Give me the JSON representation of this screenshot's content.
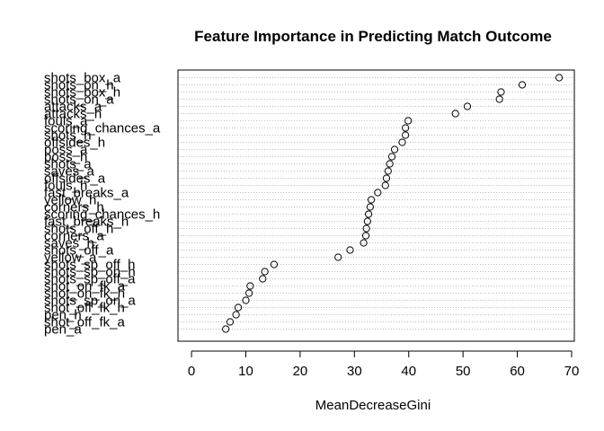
{
  "chart_data": {
    "type": "scatter",
    "title": "Feature Importance in Predicting Match Outcome",
    "xlabel": "MeanDecreaseGini",
    "ylabel": "",
    "xlim": [
      -2.5,
      70.5
    ],
    "xticks": [
      0,
      10,
      20,
      30,
      40,
      50,
      60,
      70
    ],
    "grid": "dotted horizontal guides",
    "points": [
      {
        "label": "shots_box_a",
        "value": 67.7
      },
      {
        "label": "shots_on_h",
        "value": 60.9
      },
      {
        "label": "shots_box_h",
        "value": 57.0
      },
      {
        "label": "shots_on_a",
        "value": 56.7
      },
      {
        "label": "attacks_a",
        "value": 50.8
      },
      {
        "label": "attacks_h",
        "value": 48.6
      },
      {
        "label": "fouls_a",
        "value": 39.9
      },
      {
        "label": "scoring_chances_a",
        "value": 39.4
      },
      {
        "label": "shots_h",
        "value": 39.4
      },
      {
        "label": "offsides_h",
        "value": 38.8
      },
      {
        "label": "poss_a",
        "value": 37.4
      },
      {
        "label": "poss_h",
        "value": 36.9
      },
      {
        "label": "shots_a",
        "value": 36.5
      },
      {
        "label": "saves_a",
        "value": 36.2
      },
      {
        "label": "offsides_a",
        "value": 35.9
      },
      {
        "label": "fouls_h",
        "value": 35.7
      },
      {
        "label": "fast_breaks_a",
        "value": 34.3
      },
      {
        "label": "yellow_h",
        "value": 33.1
      },
      {
        "label": "corners_h",
        "value": 32.9
      },
      {
        "label": "scoring_chances_h",
        "value": 32.6
      },
      {
        "label": "fast_breaks_h",
        "value": 32.4
      },
      {
        "label": "shots_off_h",
        "value": 32.2
      },
      {
        "label": "corners_a",
        "value": 32.1
      },
      {
        "label": "saves_h",
        "value": 31.7
      },
      {
        "label": "shots_off_a",
        "value": 29.2
      },
      {
        "label": "yellow_a",
        "value": 27.0
      },
      {
        "label": "shots_sp_off_h",
        "value": 15.2
      },
      {
        "label": "shots_sp_on_h",
        "value": 13.5
      },
      {
        "label": "shots_sp_off_a",
        "value": 13.1
      },
      {
        "label": "shot_on_fk_a",
        "value": 10.8
      },
      {
        "label": "shot_on_fk_h",
        "value": 10.6
      },
      {
        "label": "shots_sp_on_a",
        "value": 10.0
      },
      {
        "label": "shot_off_fk_h",
        "value": 8.6
      },
      {
        "label": "pen_h",
        "value": 8.2
      },
      {
        "label": "shot_off_fk_a",
        "value": 7.1
      },
      {
        "label": "pen_a",
        "value": 6.3
      }
    ]
  }
}
